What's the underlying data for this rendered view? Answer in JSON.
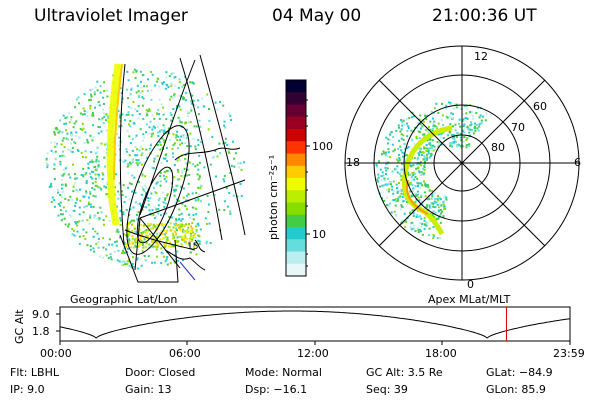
{
  "header": {
    "instrument": "Ultraviolet Imager",
    "date": "04 May 00",
    "time": "21:00:36 UT"
  },
  "colorbar": {
    "unit_label": "photon cm⁻²s⁻¹",
    "ticks": [
      "100",
      "10"
    ],
    "colors": [
      "#000033",
      "#330033",
      "#660033",
      "#990022",
      "#cc0000",
      "#ff3300",
      "#ff8800",
      "#ffcc00",
      "#eeff00",
      "#bbee00",
      "#88dd00",
      "#44cc44",
      "#22cccc",
      "#66dddd",
      "#bbeeee",
      "#e8f8f8"
    ]
  },
  "left_panel": {
    "caption": "Geographic Lat/Lon",
    "annotation": "15"
  },
  "right_panel": {
    "caption": "Apex MLat/MLT",
    "mlt_labels": {
      "top": "12",
      "left": "18",
      "right": "6",
      "bottom": "0"
    },
    "lat_labels": [
      "60",
      "70",
      "80"
    ]
  },
  "altitude_plot": {
    "ylabel": "GC Alt",
    "y_ticks": [
      "9.0",
      "1.8"
    ],
    "x_ticks": [
      "00:00",
      "06:00",
      "12:00",
      "18:00",
      "23:59"
    ],
    "current_time_marker_hours": 21.01,
    "marker_color": "#dd0000"
  },
  "info": {
    "row1": {
      "flt": "Flt: LBHL",
      "door": "Door: Closed",
      "mode": "Mode: Normal",
      "gc_alt": "GC Alt: 3.5 Re",
      "glat": "GLat: −84.9"
    },
    "row2": {
      "ip": "IP:  9.0",
      "gain": "Gain: 13",
      "dsp": "Dsp:  −16.1",
      "seq": "Seq: 39",
      "glon": "GLon:  85.9"
    }
  }
}
